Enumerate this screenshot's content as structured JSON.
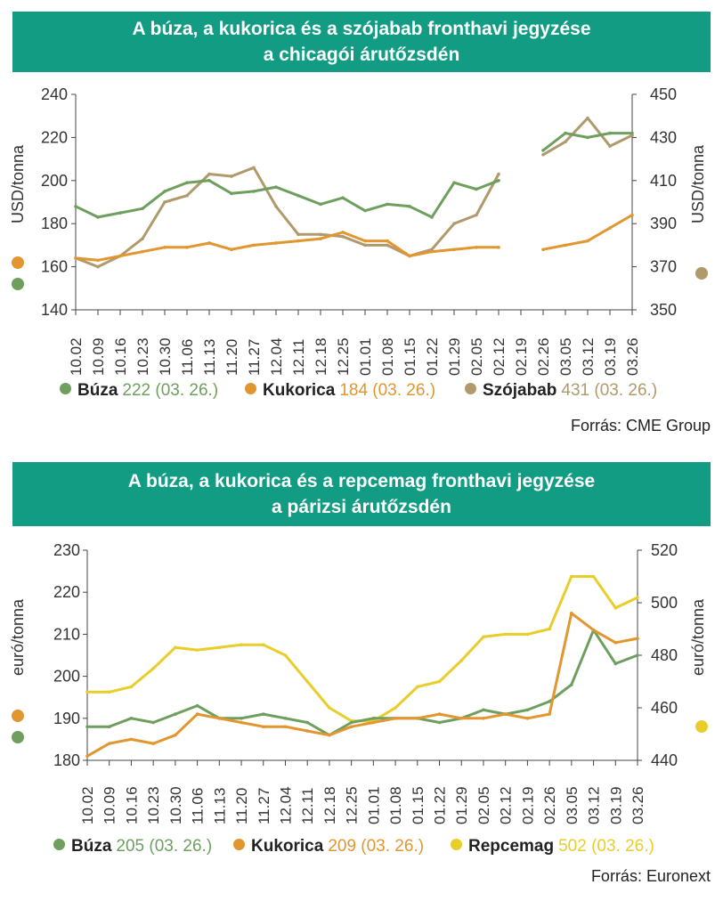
{
  "charts": [
    {
      "title_line1": "A búza, a kukorica és a szójabab fronthavi jegyzése",
      "title_line2": "a chicagói árutőzsdén",
      "source": "Forrás: CME Group",
      "legend": [
        {
          "name": "Búza",
          "value": "222 (03. 26.)",
          "color": "#6e9f5f"
        },
        {
          "name": "Kukorica",
          "value": "184 (03. 26.)",
          "color": "#e2962f"
        },
        {
          "name": "Szójabab",
          "value": "431 (03. 26.)",
          "color": "#b09a6c"
        }
      ]
    },
    {
      "title_line1": "A búza, a kukorica és a repcemag fronthavi jegyzése",
      "title_line2": "a párizsi árutőzsdén",
      "source": "Forrás: Euronext",
      "legend": [
        {
          "name": "Búza",
          "value": "205 (03. 26.)",
          "color": "#6e9f5f"
        },
        {
          "name": "Kukorica",
          "value": "209 (03. 26.)",
          "color": "#e2962f"
        },
        {
          "name": "Repcemag",
          "value": "502 (03. 26.)",
          "color": "#e9cd2a"
        }
      ]
    }
  ],
  "chart_data": [
    {
      "type": "line",
      "title": "A búza, a kukorica és a szójabab fronthavi jegyzése a chicagói árutőzsdén",
      "xlabel": "",
      "x_ticks": [
        "10.02",
        "10.09",
        "10.16",
        "10.23",
        "10.30",
        "11.06",
        "11.13",
        "11.20",
        "11.27",
        "12.04",
        "12.11",
        "12.18",
        "12.25",
        "01.01",
        "01.08",
        "01.15",
        "01.22",
        "01.29",
        "02.05",
        "02.12",
        "02.19",
        "02.26",
        "03.05",
        "03.12",
        "03.19",
        "03.26"
      ],
      "y_left": {
        "label": "USD/tonna",
        "ylim": [
          140,
          240
        ],
        "ticks": [
          140,
          160,
          180,
          200,
          220,
          240
        ]
      },
      "y_right": {
        "label": "USD/tonna",
        "ylim": [
          350,
          450
        ],
        "ticks": [
          350,
          370,
          390,
          410,
          430,
          450
        ]
      },
      "series": [
        {
          "name": "Búza",
          "axis": "left",
          "color": "#6e9f5f",
          "values": [
            188,
            183,
            185,
            187,
            195,
            199,
            200,
            194,
            195,
            197,
            193,
            189,
            192,
            186,
            189,
            188,
            183,
            199,
            196,
            200,
            null,
            214,
            222,
            220,
            222,
            222
          ]
        },
        {
          "name": "Kukorica",
          "axis": "left",
          "color": "#e2962f",
          "values": [
            164,
            163,
            165,
            167,
            169,
            169,
            171,
            168,
            170,
            171,
            172,
            173,
            176,
            172,
            172,
            165,
            167,
            168,
            169,
            169,
            null,
            168,
            170,
            172,
            178,
            184
          ]
        },
        {
          "name": "Szójabab",
          "axis": "right",
          "color": "#b09a6c",
          "values": [
            374,
            370,
            375,
            383,
            400,
            403,
            413,
            412,
            416,
            398,
            385,
            385,
            384,
            380,
            380,
            375,
            378,
            390,
            394,
            413,
            null,
            422,
            428,
            439,
            426,
            431
          ]
        }
      ]
    },
    {
      "type": "line",
      "title": "A búza, a kukorica és a repcemag fronthavi jegyzése a párizsi árutőzsdén",
      "xlabel": "",
      "x_ticks": [
        "10.02",
        "10.09",
        "10.16",
        "10.23",
        "10.30",
        "11.06",
        "11.13",
        "11.20",
        "11.27",
        "12.04",
        "12.11",
        "12.18",
        "12.25",
        "01.01",
        "01.08",
        "01.15",
        "01.22",
        "01.29",
        "02.05",
        "02.12",
        "02.19",
        "02.26",
        "03.05",
        "03.12",
        "03.19",
        "03.26"
      ],
      "y_left": {
        "label": "euró/tonna",
        "ylim": [
          180,
          230
        ],
        "ticks": [
          180,
          190,
          200,
          210,
          220,
          230
        ]
      },
      "y_right": {
        "label": "euró/tonna",
        "ylim": [
          440,
          520
        ],
        "ticks": [
          440,
          460,
          480,
          500,
          520
        ]
      },
      "series": [
        {
          "name": "Búza",
          "axis": "left",
          "color": "#6e9f5f",
          "values": [
            188,
            188,
            190,
            189,
            191,
            193,
            190,
            190,
            191,
            190,
            189,
            186,
            189,
            190,
            190,
            190,
            189,
            190,
            192,
            191,
            192,
            194,
            198,
            211,
            203,
            205
          ]
        },
        {
          "name": "Kukorica",
          "axis": "left",
          "color": "#e2962f",
          "values": [
            181,
            184,
            185,
            184,
            186,
            191,
            190,
            189,
            188,
            188,
            187,
            186,
            188,
            189,
            190,
            190,
            191,
            190,
            190,
            191,
            190,
            191,
            215,
            211,
            208,
            209
          ]
        },
        {
          "name": "Repcemag",
          "axis": "right",
          "color": "#e9cd2a",
          "values": [
            466,
            466,
            468,
            475,
            483,
            482,
            483,
            484,
            484,
            480,
            470,
            460,
            455,
            455,
            460,
            468,
            470,
            478,
            487,
            488,
            488,
            490,
            510,
            510,
            498,
            502
          ]
        }
      ]
    }
  ]
}
